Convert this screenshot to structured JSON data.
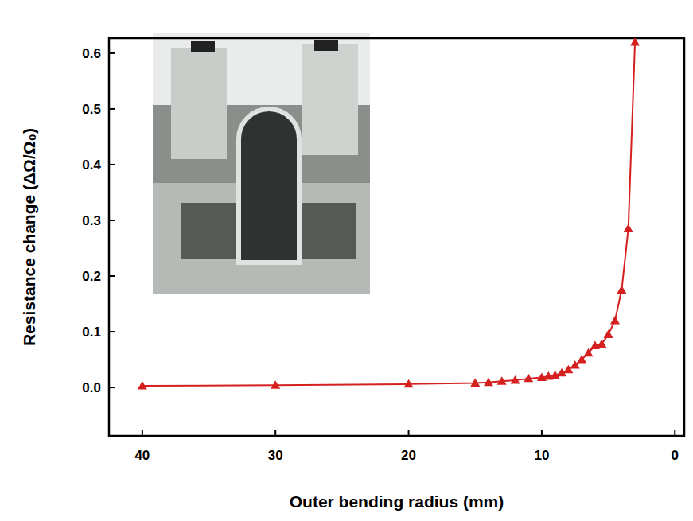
{
  "chart_data": {
    "type": "line",
    "x_label": "Outer bending radius (mm)",
    "y_label": "Resistance change (ΔΩ/Ω₀)",
    "x": [
      40,
      30,
      20,
      15,
      14,
      13,
      12,
      11,
      10,
      9.5,
      9,
      8.5,
      8,
      7.5,
      7,
      6.5,
      6,
      5.5,
      5,
      4.5,
      4,
      3.5,
      3
    ],
    "values": [
      0.003,
      0.004,
      0.006,
      0.008,
      0.009,
      0.011,
      0.013,
      0.016,
      0.018,
      0.02,
      0.022,
      0.026,
      0.032,
      0.04,
      0.05,
      0.062,
      0.075,
      0.078,
      0.095,
      0.12,
      0.175,
      0.285,
      0.62
    ],
    "color": "#d62020",
    "marker": "triangle",
    "line_style": "solid",
    "xlim": [
      42.5,
      -0.7
    ],
    "xticks": [
      40,
      30,
      20,
      10,
      0
    ],
    "ylim": [
      -0.087,
      0.627
    ],
    "yticks": [
      {
        "value": 0,
        "label": "0.0"
      },
      0.1,
      0.2,
      0.3,
      0.4,
      0.5,
      0.6
    ],
    "grid": false
  }
}
